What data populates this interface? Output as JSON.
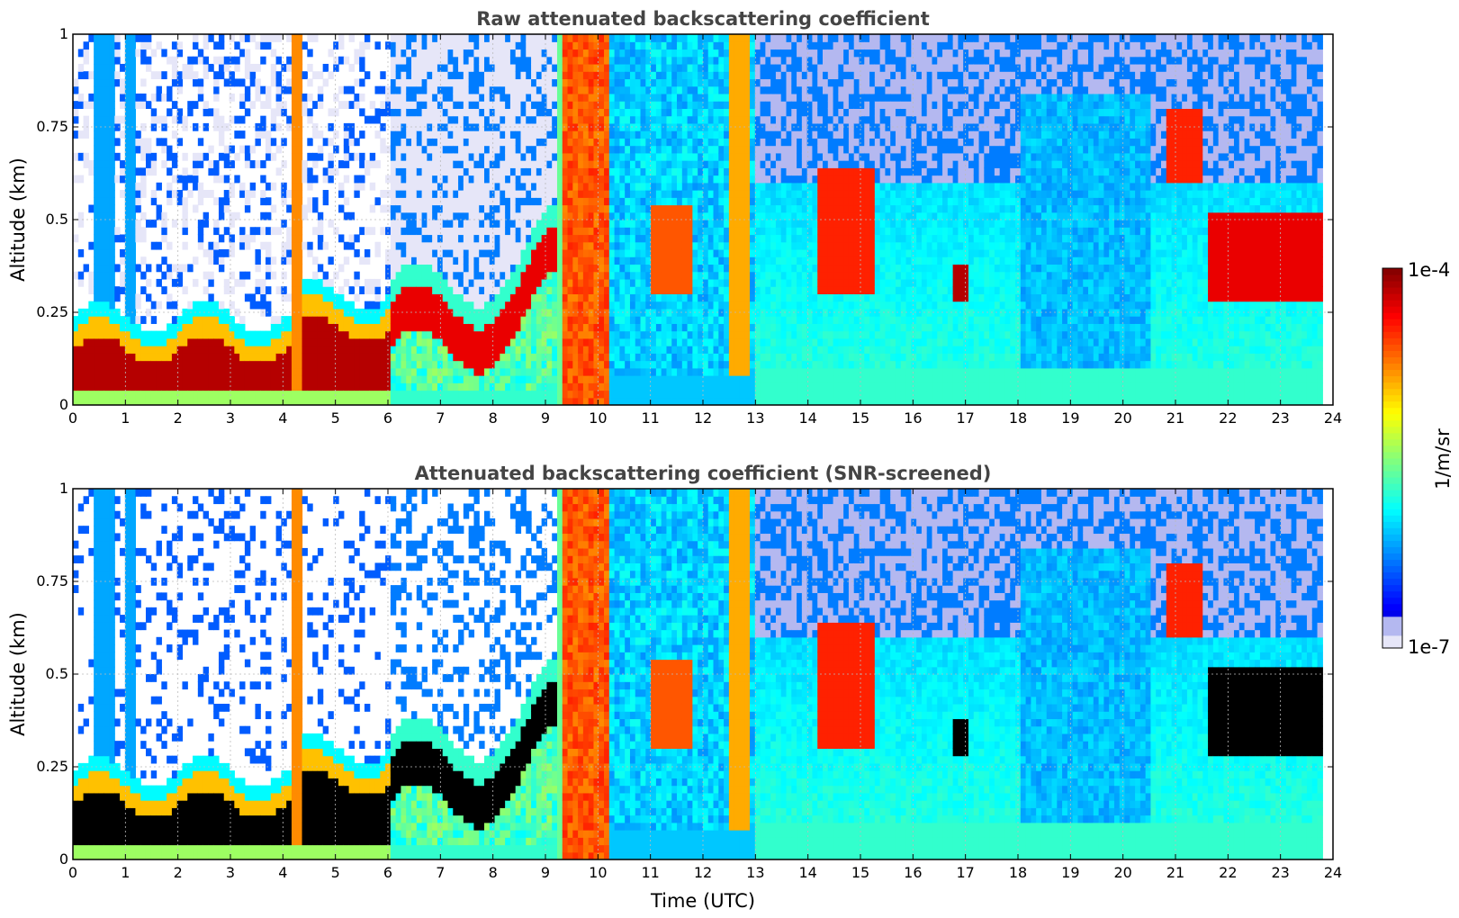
{
  "chart_data": [
    {
      "type": "heatmap",
      "title": "Raw attenuated backscattering coefficient",
      "xlabel": "",
      "ylabel": "Altitude (km)",
      "xlim": [
        0,
        24
      ],
      "ylim": [
        0,
        1
      ],
      "xticks": [
        0,
        1,
        2,
        3,
        4,
        5,
        6,
        7,
        8,
        9,
        10,
        11,
        12,
        13,
        14,
        15,
        16,
        17,
        18,
        19,
        20,
        21,
        22,
        23,
        24
      ],
      "xtick_labels": [
        "0",
        "1",
        "2",
        "3",
        "4",
        "5",
        "6",
        "7",
        "8",
        "9",
        "10",
        "11",
        "12",
        "13",
        "14",
        "15",
        "16",
        "17",
        "18",
        "19",
        "20",
        "21",
        "22",
        "23",
        "24"
      ],
      "yticks": [
        0,
        0.25,
        0.5,
        0.75,
        1
      ],
      "ytick_labels": [
        "0",
        "0.25",
        "0.5",
        "0.75",
        "1"
      ],
      "grid": true,
      "data_end_hour": 23.8,
      "features": [
        {
          "name": "surface aerosol layer",
          "from": 0,
          "to": 6,
          "top_km": 0.22,
          "level": 0.9
        },
        {
          "name": "aerosol layer",
          "from": 6,
          "to": 9.1,
          "top_km": 0.45,
          "level": 0.85
        },
        {
          "name": "precipitation / fog",
          "from": 9.4,
          "to": 10.1,
          "top_km": 1.0,
          "level": 0.75
        },
        {
          "name": "cloud",
          "from": 12.5,
          "to": 12.8,
          "top_km": 1.0,
          "level": 0.7
        },
        {
          "name": "cloud",
          "from": 14.2,
          "to": 15.2,
          "top_km": 0.65,
          "level": 0.9
        },
        {
          "name": "cloud",
          "from": 16.8,
          "to": 17.1,
          "top_km": 0.35,
          "level": 0.95
        },
        {
          "name": "cloud",
          "from": 20.8,
          "to": 21.5,
          "top_km": 0.8,
          "level": 0.85
        },
        {
          "name": "cloud",
          "from": 21.6,
          "to": 23.8,
          "top_km": 0.55,
          "level": 0.9
        }
      ]
    },
    {
      "type": "heatmap",
      "title": "Attenuated backscattering coefficient (SNR-screened)",
      "xlabel": "Time (UTC)",
      "ylabel": "Altitude (km)",
      "xlim": [
        0,
        24
      ],
      "ylim": [
        0,
        1
      ],
      "xticks": [
        0,
        1,
        2,
        3,
        4,
        5,
        6,
        7,
        8,
        9,
        10,
        11,
        12,
        13,
        14,
        15,
        16,
        17,
        18,
        19,
        20,
        21,
        22,
        23,
        24
      ],
      "xtick_labels": [
        "0",
        "1",
        "2",
        "3",
        "4",
        "5",
        "6",
        "7",
        "8",
        "9",
        "10",
        "11",
        "12",
        "13",
        "14",
        "15",
        "16",
        "17",
        "18",
        "19",
        "20",
        "21",
        "22",
        "23",
        "24"
      ],
      "yticks": [
        0,
        0.25,
        0.5,
        0.75,
        1
      ],
      "ytick_labels": [
        "0",
        "0.25",
        "0.5",
        "0.75",
        "1"
      ],
      "grid": true,
      "screened": true,
      "data_end_hour": 23.8
    }
  ],
  "colorbar": {
    "colormap": "jet",
    "scale": "log",
    "min_label": "1e-7",
    "max_label": "1e-4",
    "label": "1/m/sr"
  },
  "colors": {
    "title": "#444444",
    "grid": "#bbbbbb",
    "masked": "#000000"
  }
}
